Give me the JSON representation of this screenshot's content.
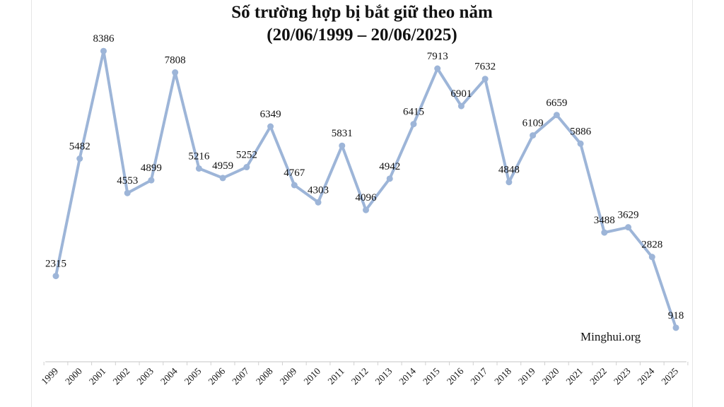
{
  "chart_data": {
    "type": "line",
    "title": "Số trường hợp bị bắt giữ theo năm",
    "subtitle": "(20/06/1999 – 20/06/2025)",
    "xlabel": "",
    "ylabel": "",
    "categories": [
      "1999",
      "2000",
      "2001",
      "2002",
      "2003",
      "2004",
      "2005",
      "2006",
      "2007",
      "2008",
      "2009",
      "2010",
      "2011",
      "2012",
      "2013",
      "2014",
      "2015",
      "2016",
      "2017",
      "2018",
      "2019",
      "2020",
      "2021",
      "2022",
      "2023",
      "2024",
      "2025"
    ],
    "series": [
      {
        "values": [
          2315,
          5482,
          8386,
          4553,
          4899,
          7808,
          5216,
          4959,
          5252,
          6349,
          4767,
          4303,
          5831,
          4096,
          4942,
          6415,
          7913,
          6901,
          7632,
          4848,
          6109,
          6659,
          5886,
          3488,
          3629,
          2828,
          918
        ]
      }
    ],
    "ylim": [
      0,
      9000
    ],
    "grid": false,
    "legend": "none",
    "data_labels": true,
    "line_color": "#9db5d8"
  },
  "credit": "Minghui.org"
}
